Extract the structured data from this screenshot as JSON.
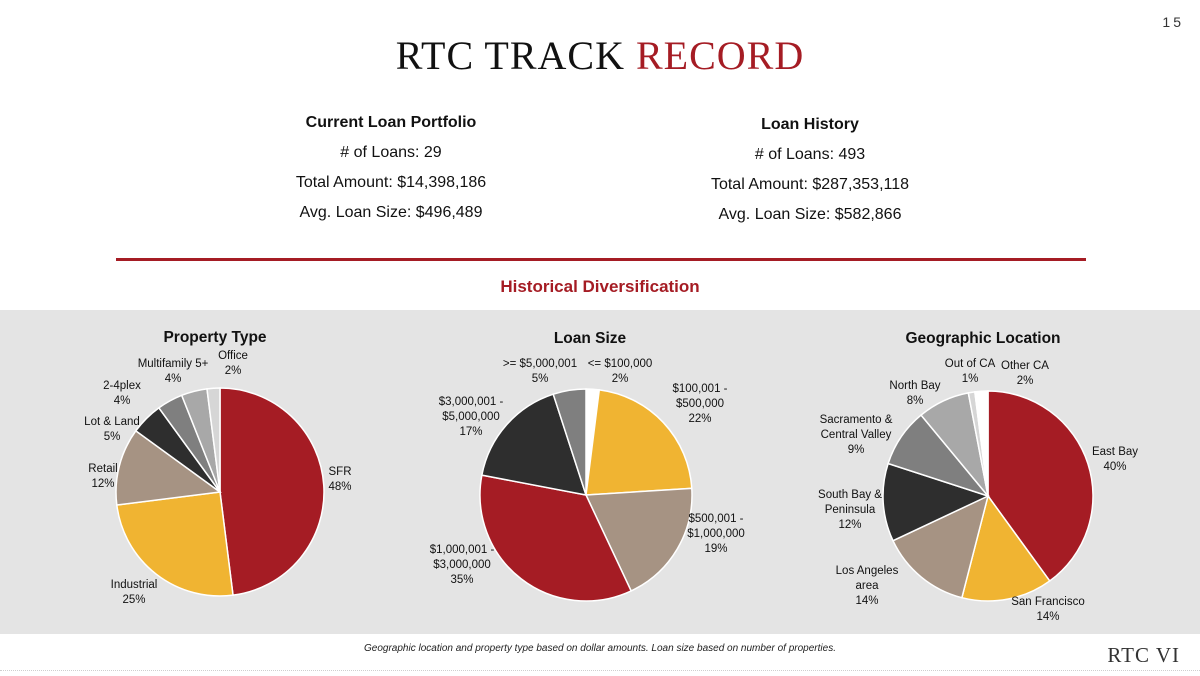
{
  "page_number": "15",
  "title": {
    "part1": "RTC TRACK",
    "part2": "RECORD"
  },
  "current_portfolio": {
    "heading": "Current Loan Portfolio",
    "loans": "# of Loans: 29",
    "total": "Total Amount: $14,398,186",
    "avg": "Avg. Loan Size: $496,489"
  },
  "loan_history": {
    "heading": "Loan History",
    "loans": "# of Loans: 493",
    "total": "Total Amount: $287,353,118",
    "avg": "Avg. Loan Size: $582,866"
  },
  "section_title": "Historical Diversification",
  "footnote": "Geographic location and property type based on dollar amounts. Loan size based on number of properties.",
  "brand": "RTC VI",
  "colors": {
    "red": "#a51c24",
    "yellow": "#f0b432",
    "taupe": "#a69383",
    "black": "#2e2e2e",
    "gray": "#7f7f7f",
    "lightgray": "#a8a8a8",
    "paleGray": "#d6d6d6",
    "white": "#ffffff"
  },
  "chart_data": [
    {
      "type": "pie",
      "title": "Property Type",
      "slices": [
        {
          "label": [
            "SFR",
            "48%"
          ],
          "value": 48,
          "color": "#a51c24"
        },
        {
          "label": [
            "Industrial",
            "25%"
          ],
          "value": 25,
          "color": "#f0b432"
        },
        {
          "label": [
            "Retail",
            "12%"
          ],
          "value": 12,
          "color": "#a69383"
        },
        {
          "label": [
            "Lot & Land",
            "5%"
          ],
          "value": 5,
          "color": "#2e2e2e"
        },
        {
          "label": [
            "2-4plex",
            "4%"
          ],
          "value": 4,
          "color": "#7f7f7f"
        },
        {
          "label": [
            "Multifamily 5+",
            "4%"
          ],
          "value": 4,
          "color": "#a8a8a8"
        },
        {
          "label": [
            "Office",
            "2%"
          ],
          "value": 2,
          "color": "#d6d6d6"
        }
      ]
    },
    {
      "type": "pie",
      "title": "Loan Size",
      "slices": [
        {
          "label": [
            "<= $100,000",
            "2%"
          ],
          "value": 2,
          "color": "#ffffff"
        },
        {
          "label": [
            "$100,001 -",
            "$500,000",
            "22%"
          ],
          "value": 22,
          "color": "#f0b432"
        },
        {
          "label": [
            "$500,001 -",
            "$1,000,000",
            "19%"
          ],
          "value": 19,
          "color": "#a69383"
        },
        {
          "label": [
            "$1,000,001 -",
            "$3,000,000",
            "35%"
          ],
          "value": 35,
          "color": "#a51c24"
        },
        {
          "label": [
            "$3,000,001 -",
            "$5,000,000",
            "17%"
          ],
          "value": 17,
          "color": "#2e2e2e"
        },
        {
          "label": [
            ">= $5,000,001",
            "5%"
          ],
          "value": 5,
          "color": "#7f7f7f"
        }
      ]
    },
    {
      "type": "pie",
      "title": "Geographic Location",
      "slices": [
        {
          "label": [
            "East Bay",
            "40%"
          ],
          "value": 40,
          "color": "#a51c24"
        },
        {
          "label": [
            "San Francisco",
            "14%"
          ],
          "value": 14,
          "color": "#f0b432"
        },
        {
          "label": [
            "Los Angeles",
            "area",
            "14%"
          ],
          "value": 14,
          "color": "#a69383"
        },
        {
          "label": [
            "South Bay &",
            "Peninsula",
            "12%"
          ],
          "value": 12,
          "color": "#2e2e2e"
        },
        {
          "label": [
            "Sacramento &",
            "Central Valley",
            "9%"
          ],
          "value": 9,
          "color": "#7f7f7f"
        },
        {
          "label": [
            "North Bay",
            "8%"
          ],
          "value": 8,
          "color": "#a8a8a8"
        },
        {
          "label": [
            "Out of CA",
            "1%"
          ],
          "value": 1,
          "color": "#d6d6d6"
        },
        {
          "label": [
            "Other CA",
            "2%"
          ],
          "value": 2,
          "color": "#ffffff"
        }
      ]
    }
  ]
}
